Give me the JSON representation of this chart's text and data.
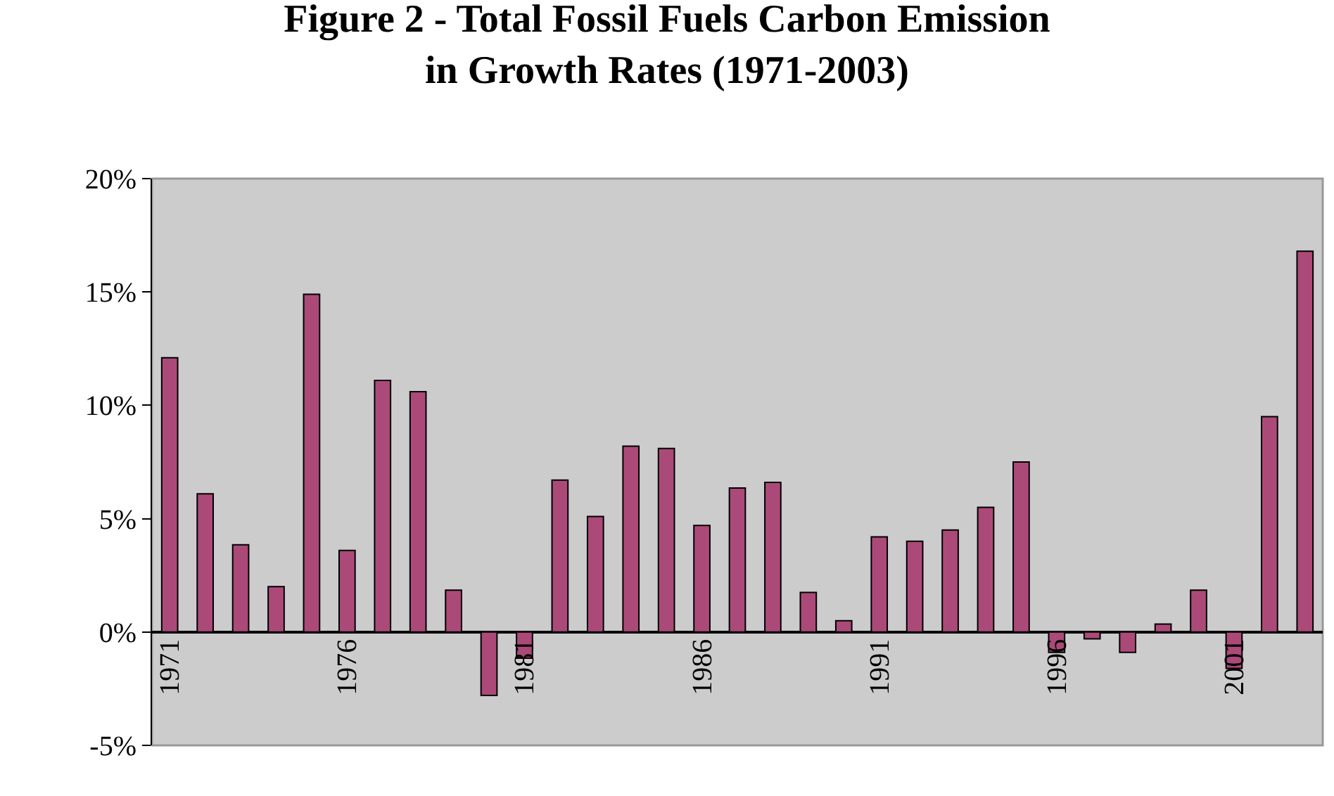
{
  "chart_data": {
    "type": "bar",
    "title": "Figure 2 - Total Fossil Fuels Carbon Emission\nin Growth Rates (1971-2003)",
    "categories": [
      "1971",
      null,
      null,
      null,
      null,
      "1976",
      null,
      null,
      null,
      null,
      "1981",
      null,
      null,
      null,
      null,
      "1986",
      null,
      null,
      null,
      null,
      "1991",
      null,
      null,
      null,
      null,
      "1996",
      null,
      null,
      null,
      null,
      "2001",
      null,
      null
    ],
    "values": [
      12.1,
      6.1,
      3.85,
      2.0,
      14.9,
      3.6,
      11.1,
      10.6,
      1.85,
      -2.8,
      -1.15,
      6.7,
      5.1,
      8.2,
      8.1,
      4.7,
      6.35,
      6.6,
      1.75,
      0.5,
      4.2,
      4.0,
      4.5,
      5.5,
      7.5,
      -0.9,
      -0.3,
      -0.9,
      0.35,
      1.85,
      -1.6,
      9.5,
      16.8
    ],
    "color": "#ab4a78",
    "ylim": [
      -5,
      20
    ],
    "yticks": [
      {
        "value": -5,
        "label": "-5%"
      },
      {
        "value": 0,
        "label": "0%"
      },
      {
        "value": 5,
        "label": "5%"
      },
      {
        "value": 10,
        "label": "10%"
      },
      {
        "value": 15,
        "label": "15%"
      },
      {
        "value": 20,
        "label": "20%"
      }
    ],
    "grid": false,
    "legend": false
  }
}
